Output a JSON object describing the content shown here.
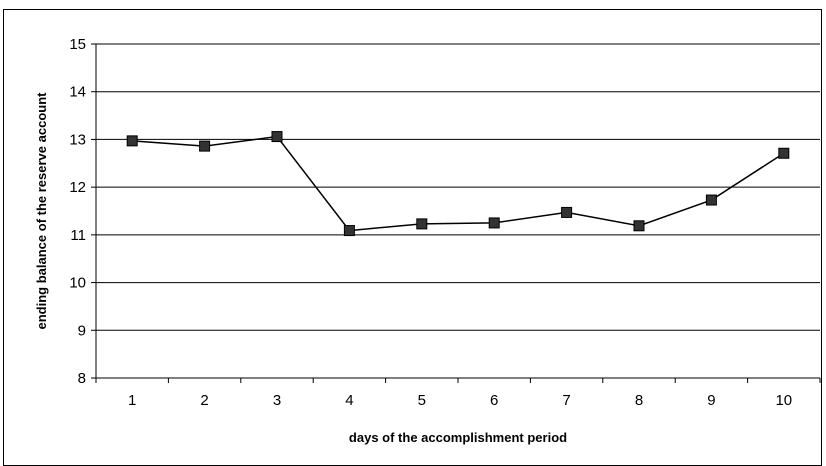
{
  "chart_data": {
    "type": "line",
    "title": "",
    "xlabel": "days of the accomplishment period",
    "ylabel": "ending balance of the reserve account",
    "categories": [
      "1",
      "2",
      "3",
      "4",
      "5",
      "6",
      "7",
      "8",
      "9",
      "10"
    ],
    "series": [
      {
        "values": [
          12.97,
          12.86,
          13.06,
          11.09,
          11.23,
          11.25,
          11.47,
          11.19,
          11.73,
          12.71
        ],
        "color": "#000000",
        "marker": "square",
        "marker_color": "#333333"
      }
    ],
    "ylim": [
      8,
      15
    ],
    "yticks": [
      "8",
      "9",
      "10",
      "11",
      "12",
      "13",
      "14",
      "15"
    ],
    "grid": true,
    "legend": "none"
  }
}
